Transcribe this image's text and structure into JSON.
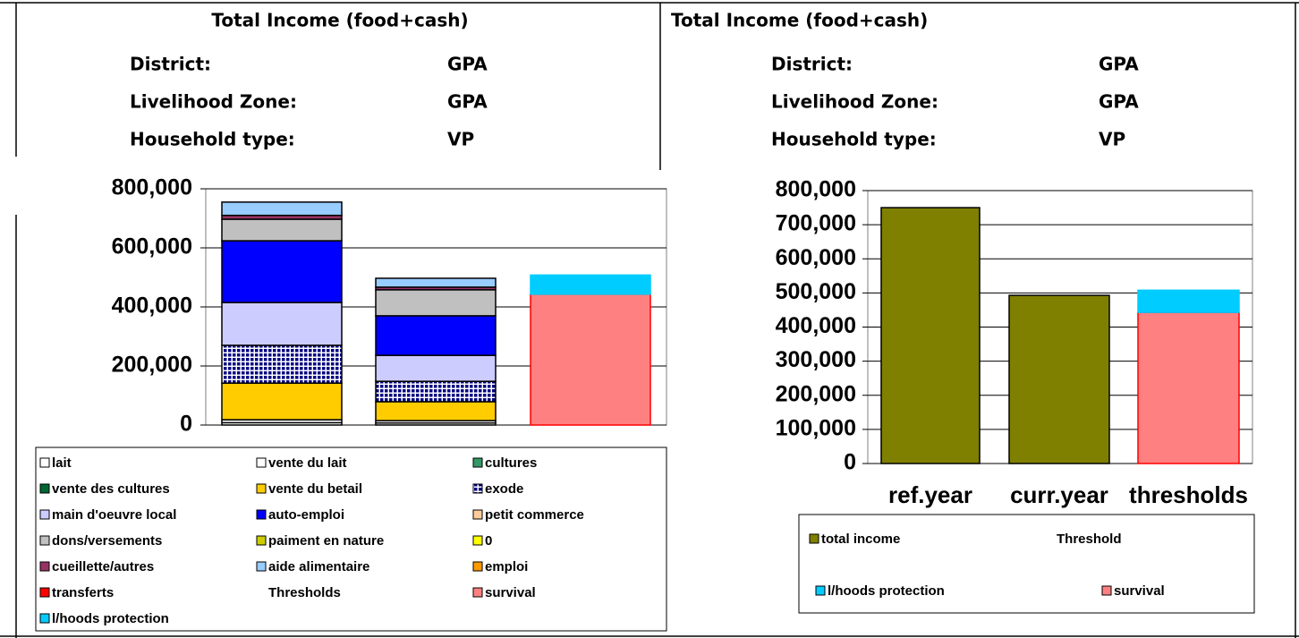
{
  "panels": [
    {
      "title": "Total Income (food+cash)",
      "fields": [
        {
          "label": "District:",
          "value": "GPA"
        },
        {
          "label": "Livelihood Zone:",
          "value": "GPA"
        },
        {
          "label": "Household type:",
          "value": "VP"
        }
      ]
    },
    {
      "title": "Total Income (food+cash)",
      "fields": [
        {
          "label": "District:",
          "value": "GPA"
        },
        {
          "label": "Livelihood Zone:",
          "value": "GPA"
        },
        {
          "label": "Household type:",
          "value": "VP"
        }
      ]
    }
  ],
  "chart_data": [
    {
      "type": "stacked_bar",
      "categories": [
        null,
        null,
        null
      ],
      "ylim": [
        0,
        800000
      ],
      "yticks": [
        0,
        {
          "value": 200000,
          "label": "200,000"
        },
        {
          "value": 400000,
          "label": "400,000"
        },
        {
          "value": 600000,
          "label": "600,000"
        },
        {
          "value": 800000,
          "label": "800,000"
        }
      ],
      "grid": true,
      "series": [
        {
          "name": "lait",
          "color": "#ffffff",
          "values": [
            8000,
            7000,
            null
          ]
        },
        {
          "name": "vente du lait",
          "color": "#ffffff",
          "values": [
            10000,
            8000,
            null
          ]
        },
        {
          "name": "cultures",
          "color": "#339966",
          "values": [
            0,
            0,
            null
          ]
        },
        {
          "name": "vente des cultures",
          "color": "#006633",
          "values": [
            0,
            0,
            null
          ]
        },
        {
          "name": "vente du betail",
          "color": "#ffcc00",
          "values": [
            124000,
            64000,
            null
          ]
        },
        {
          "name": "exode",
          "color": "#000080",
          "pattern": "grid",
          "values": [
            128000,
            69000,
            null
          ]
        },
        {
          "name": "main d'oeuvre local",
          "color": "#ccccff",
          "values": [
            145000,
            88000,
            null
          ]
        },
        {
          "name": "auto-emploi",
          "color": "#0000ff",
          "values": [
            209000,
            134000,
            null
          ]
        },
        {
          "name": "petit commerce",
          "color": "#ffcc99",
          "values": [
            0,
            0,
            null
          ]
        },
        {
          "name": "dons/versements",
          "color": "#c0c0c0",
          "values": [
            73000,
            88000,
            null
          ]
        },
        {
          "name": "paiment en nature",
          "color": "#cccc00",
          "values": [
            0,
            0,
            null
          ]
        },
        {
          "name": "0",
          "color": "#ffff00",
          "values": [
            0,
            0,
            null
          ]
        },
        {
          "name": "cueillette/autres",
          "color": "#993366",
          "values": [
            13000,
            9000,
            null
          ]
        },
        {
          "name": "aide alimentaire",
          "color": "#99ccff",
          "values": [
            45000,
            30000,
            null
          ]
        },
        {
          "name": "emploi",
          "color": "#ff9900",
          "values": [
            0,
            0,
            null
          ]
        },
        {
          "name": "transferts",
          "color": "#ff0000",
          "values": [
            0,
            0,
            null
          ]
        },
        {
          "name": "Thresholds",
          "color": null,
          "values": [
            null,
            null,
            null
          ]
        },
        {
          "name": "survival",
          "color": "#ff8080",
          "edgecolor": "#ff0000",
          "values": [
            null,
            null,
            443000
          ]
        },
        {
          "name": "l/hoods protection",
          "color": "#00ccff",
          "edgecolor": "#00ccff",
          "values": [
            null,
            null,
            65000
          ]
        }
      ]
    },
    {
      "type": "stacked_bar",
      "categories": [
        "ref.year",
        "curr.year",
        "thresholds"
      ],
      "ylim": [
        0,
        800000
      ],
      "yticks": [
        0,
        {
          "value": 100000,
          "label": "100,000"
        },
        {
          "value": 200000,
          "label": "200,000"
        },
        {
          "value": 300000,
          "label": "300,000"
        },
        {
          "value": 400000,
          "label": "400,000"
        },
        {
          "value": 500000,
          "label": "500,000"
        },
        {
          "value": 600000,
          "label": "600,000"
        },
        {
          "value": 700000,
          "label": "700,000"
        },
        {
          "value": 800000,
          "label": "800,000"
        }
      ],
      "grid": true,
      "series": [
        {
          "name": "total income",
          "color": "#808000",
          "values": [
            750000,
            493000,
            null
          ]
        },
        {
          "name": "Threshold",
          "color": null,
          "values": [
            null,
            null,
            null
          ]
        },
        {
          "name": "survival",
          "color": "#ff8080",
          "edgecolor": "#ff0000",
          "values": [
            null,
            null,
            443000
          ]
        },
        {
          "name": "l/hoods protection",
          "color": "#00ccff",
          "edgecolor": "#00ccff",
          "values": [
            null,
            null,
            65000
          ]
        }
      ]
    }
  ]
}
